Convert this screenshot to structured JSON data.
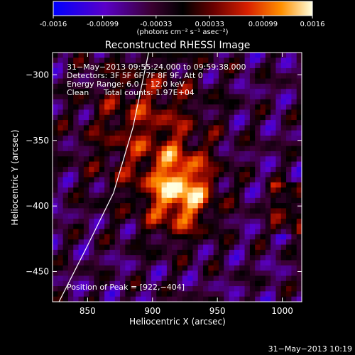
{
  "colorbar": {
    "tick_labels": [
      "-0.0016",
      "-0.00099",
      "-0.00033",
      "0.00033",
      "0.00099",
      "0.0016"
    ],
    "unit_label": "(photons cm⁻² s⁻¹ asec⁻²)",
    "range": [
      -0.0016,
      0.0016
    ]
  },
  "chart_data": {
    "type": "heatmap",
    "title": "Reconstructed RHESSI Image",
    "xlabel": "Heliocentric X (arcsec)",
    "ylabel": "Heliocentric Y (arcsec)",
    "xlim": [
      823,
      1015
    ],
    "ylim": [
      -473,
      -283
    ],
    "xticks": [
      850,
      900,
      950,
      1000
    ],
    "yticks": [
      -300,
      -350,
      -400,
      -450
    ],
    "xtick_labels": [
      "850",
      "900",
      "950",
      "1000"
    ],
    "ytick_labels": [
      "−300",
      "−350",
      "−400",
      "−450"
    ],
    "peak": [
      922,
      -404
    ],
    "limb_curve": [
      [
        828,
        -473
      ],
      [
        850,
        -430
      ],
      [
        870,
        -390
      ],
      [
        885,
        -340
      ],
      [
        897,
        -283
      ]
    ]
  },
  "annotations": {
    "time_range": "31−May−2013 09:55:24.000 to 09:59:38.000",
    "detectors": "Detectors: 3F 5F 6F 7F 8F 9F, Att 0",
    "energy_range": "Energy Range: 6.0 − 12.0 keV",
    "clean_label": "Clean",
    "total_counts": "Total counts: 1.97E+04",
    "peak_position": "Position of Peak = [922,−404]"
  },
  "footer": {
    "timestamp": "31−May−2013 10:19"
  }
}
